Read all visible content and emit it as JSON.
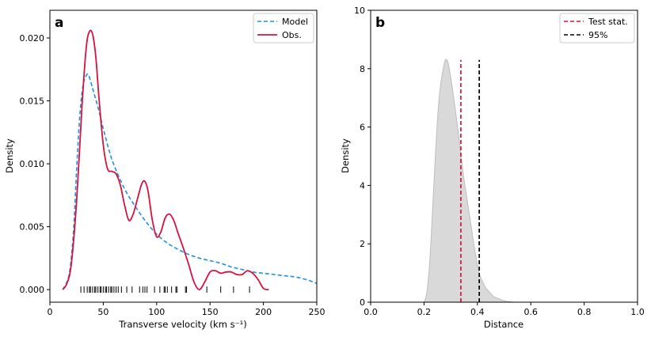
{
  "chart_data": [
    {
      "id": "a",
      "type": "line",
      "panel_label": "a",
      "xlabel": "Transverse velocity (km s⁻¹)",
      "ylabel": "Density",
      "xlim": [
        0,
        250
      ],
      "ylim": [
        -0.001,
        0.0222
      ],
      "xticks": [
        0,
        50,
        100,
        150,
        200,
        250
      ],
      "yticks": [
        0.0,
        0.005,
        0.01,
        0.015,
        0.02
      ],
      "ytick_labels": [
        "0.000",
        "0.005",
        "0.010",
        "0.015",
        "0.020"
      ],
      "legend_position": "top-right",
      "series": [
        {
          "name": "Model",
          "style": "dashed",
          "color": "#1f8fe5",
          "x": [
            12,
            18,
            22,
            25,
            28,
            31,
            34,
            36,
            38,
            41,
            45,
            50,
            55,
            60,
            70,
            80,
            90,
            100,
            110,
            120,
            130,
            140,
            150,
            160,
            170,
            180,
            190,
            200,
            210,
            220,
            230,
            240,
            250
          ],
          "y": [
            0.0,
            0.0012,
            0.0045,
            0.0095,
            0.0138,
            0.0162,
            0.017,
            0.0171,
            0.0166,
            0.0157,
            0.0145,
            0.0128,
            0.0112,
            0.0099,
            0.008,
            0.0066,
            0.0054,
            0.0044,
            0.0037,
            0.0032,
            0.0028,
            0.0025,
            0.0023,
            0.0021,
            0.0018,
            0.0016,
            0.0014,
            0.0013,
            0.0012,
            0.0011,
            0.001,
            0.0008,
            0.0005
          ]
        },
        {
          "name": "Obs.",
          "style": "solid",
          "color": "#d6123f",
          "x": [
            12,
            16,
            20,
            25,
            30,
            34,
            37,
            40,
            43,
            46,
            50,
            54,
            58,
            62,
            66,
            70,
            74,
            78,
            82,
            86,
            89,
            92,
            96,
            100,
            104,
            108,
            112,
            116,
            120,
            125,
            130,
            135,
            140,
            145,
            150,
            155,
            160,
            165,
            170,
            175,
            180,
            185,
            190,
            195,
            200,
            205
          ],
          "y": [
            0.0,
            0.0005,
            0.002,
            0.007,
            0.0145,
            0.0192,
            0.0205,
            0.0203,
            0.0185,
            0.0152,
            0.0115,
            0.0096,
            0.0094,
            0.0092,
            0.0083,
            0.0067,
            0.0055,
            0.006,
            0.0072,
            0.0084,
            0.0086,
            0.0078,
            0.0055,
            0.0042,
            0.0046,
            0.0057,
            0.006,
            0.0055,
            0.0045,
            0.0033,
            0.002,
            0.0006,
            0.0,
            0.0006,
            0.0014,
            0.0015,
            0.0013,
            0.0014,
            0.0014,
            0.0012,
            0.0012,
            0.0015,
            0.0013,
            0.0008,
            0.0001,
            0.0
          ]
        }
      ],
      "rug": [
        29,
        32,
        35,
        37,
        38,
        40,
        42,
        43,
        45,
        47,
        48,
        50,
        52,
        53,
        55,
        57,
        58,
        60,
        62,
        64,
        67,
        72,
        77,
        84,
        87,
        89,
        91,
        98,
        103,
        107,
        108,
        110,
        114,
        118,
        119,
        127,
        128,
        147,
        160,
        172,
        187
      ]
    },
    {
      "id": "b",
      "type": "area",
      "panel_label": "b",
      "xlabel": "Distance",
      "ylabel": "Density",
      "xlim": [
        0.0,
        1.0
      ],
      "ylim": [
        0,
        10
      ],
      "xticks": [
        0.0,
        0.2,
        0.4,
        0.6,
        0.8,
        1.0
      ],
      "xtick_labels": [
        "0.0",
        "0.2",
        "0.4",
        "0.6",
        "0.8",
        "1.0"
      ],
      "yticks": [
        0,
        2,
        4,
        6,
        8,
        10
      ],
      "legend_position": "top-right",
      "distribution": {
        "fill": "#d9d9d9",
        "stroke": "#bdbdbd",
        "x": [
          0.2,
          0.21,
          0.22,
          0.23,
          0.24,
          0.25,
          0.26,
          0.27,
          0.28,
          0.29,
          0.3,
          0.31,
          0.32,
          0.33,
          0.34,
          0.35,
          0.36,
          0.37,
          0.38,
          0.39,
          0.4,
          0.41,
          0.42,
          0.43,
          0.44,
          0.45,
          0.46,
          0.48,
          0.5,
          0.52,
          0.54
        ],
        "y": [
          0.0,
          0.3,
          1.2,
          2.8,
          4.6,
          6.2,
          7.3,
          7.9,
          8.3,
          8.2,
          7.7,
          7.1,
          6.4,
          5.7,
          4.9,
          4.2,
          3.6,
          3.0,
          2.4,
          1.8,
          1.3,
          0.9,
          0.7,
          0.5,
          0.4,
          0.3,
          0.2,
          0.12,
          0.05,
          0.02,
          0.0
        ]
      },
      "vlines": [
        {
          "name": "Test stat.",
          "x": 0.338,
          "ymax": 8.3,
          "color": "#d6123f",
          "style": "dashed"
        },
        {
          "name": "95%",
          "x": 0.407,
          "ymax": 8.3,
          "color": "#000000",
          "style": "dashed"
        }
      ]
    }
  ]
}
